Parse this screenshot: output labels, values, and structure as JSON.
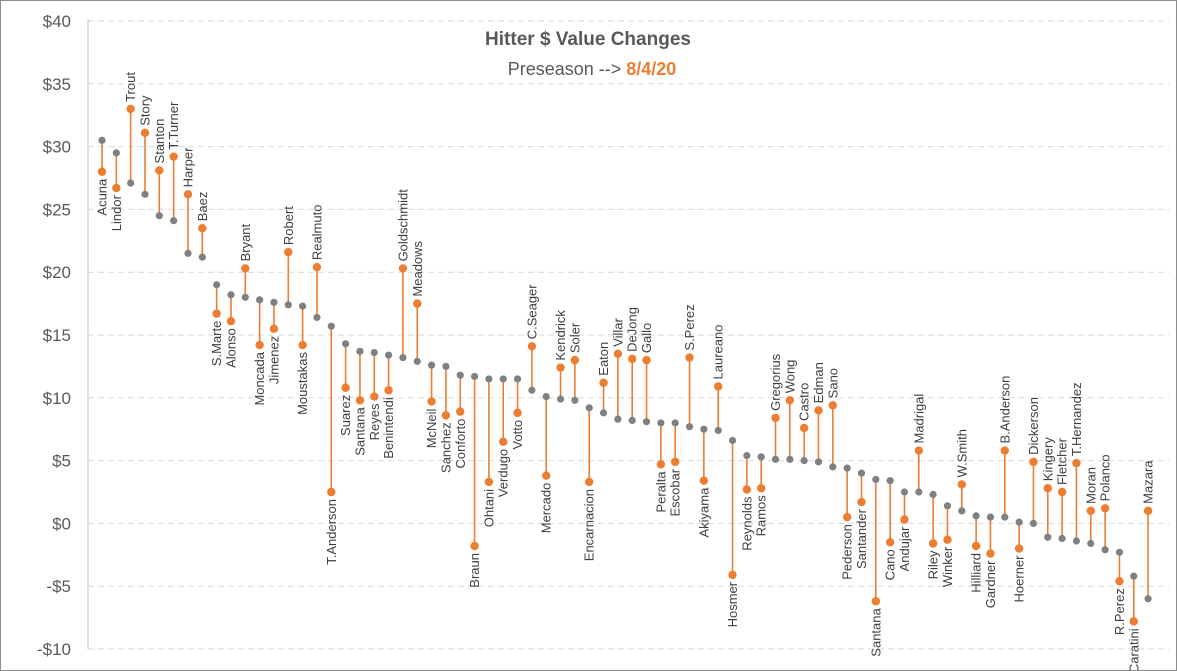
{
  "chart_data": {
    "type": "dumbbell",
    "title": "Hitter $ Value Changes",
    "subtitle_prefix": "Preseason -->",
    "subtitle_date": "8/4/20",
    "ylim": [
      -10,
      40
    ],
    "y_ticks": [
      -10,
      -5,
      0,
      5,
      10,
      15,
      20,
      25,
      30,
      35,
      40
    ],
    "y_tick_labels": [
      "-$10",
      "-$5",
      "$0",
      "$5",
      "$10",
      "$15",
      "$20",
      "$25",
      "$30",
      "$35",
      "$40"
    ],
    "grid": true,
    "colors": {
      "preseason": "#808080",
      "current": "#ed7d31",
      "grid": "#d9d9d9",
      "axis": "#bfbfbf"
    },
    "series": [
      {
        "name": "Preseason",
        "key": "pre"
      },
      {
        "name": "8/4/20",
        "key": "cur"
      }
    ],
    "players": [
      {
        "name": "Acuna",
        "pre": 30.5,
        "cur": 28.0
      },
      {
        "name": "Lindor",
        "pre": 29.5,
        "cur": 26.7
      },
      {
        "name": "Trout",
        "pre": 27.1,
        "cur": 33.0
      },
      {
        "name": "Story",
        "pre": 26.2,
        "cur": 31.1
      },
      {
        "name": "Stanton",
        "pre": 24.5,
        "cur": 28.1
      },
      {
        "name": "T.Turner",
        "pre": 24.1,
        "cur": 29.2
      },
      {
        "name": "Harper",
        "pre": 21.5,
        "cur": 26.2
      },
      {
        "name": "Baez",
        "pre": 21.2,
        "cur": 23.5
      },
      {
        "name": "S.Marte",
        "pre": 19.0,
        "cur": 16.7
      },
      {
        "name": "Alonso",
        "pre": 18.2,
        "cur": 16.1
      },
      {
        "name": "Bryant",
        "pre": 18.0,
        "cur": 20.3
      },
      {
        "name": "Moncada",
        "pre": 17.8,
        "cur": 14.2
      },
      {
        "name": "Jimenez",
        "pre": 17.6,
        "cur": 15.5
      },
      {
        "name": "Robert",
        "pre": 17.4,
        "cur": 21.6
      },
      {
        "name": "Moustakas",
        "pre": 17.3,
        "cur": 14.2
      },
      {
        "name": "Realmuto",
        "pre": 16.4,
        "cur": 20.4
      },
      {
        "name": "T.Anderson",
        "pre": 15.7,
        "cur": 2.5
      },
      {
        "name": "Suarez",
        "pre": 14.3,
        "cur": 10.8
      },
      {
        "name": "Santana",
        "pre": 13.7,
        "cur": 9.8
      },
      {
        "name": "Reyes",
        "pre": 13.6,
        "cur": 10.1
      },
      {
        "name": "Benintendi",
        "pre": 13.4,
        "cur": 10.6
      },
      {
        "name": "Goldschmidt",
        "pre": 13.2,
        "cur": 20.3
      },
      {
        "name": "Meadows",
        "pre": 12.9,
        "cur": 17.5
      },
      {
        "name": "McNeil",
        "pre": 12.6,
        "cur": 9.7
      },
      {
        "name": "Sanchez",
        "pre": 12.5,
        "cur": 8.6
      },
      {
        "name": "Conforto",
        "pre": 11.8,
        "cur": 8.9
      },
      {
        "name": "Braun",
        "pre": 11.7,
        "cur": -1.8
      },
      {
        "name": "Ohtani",
        "pre": 11.5,
        "cur": 3.3
      },
      {
        "name": "Verdugo",
        "pre": 11.5,
        "cur": 6.5
      },
      {
        "name": "Votto",
        "pre": 11.5,
        "cur": 8.8
      },
      {
        "name": "C.Seager",
        "pre": 10.6,
        "cur": 14.1
      },
      {
        "name": "Mercado",
        "pre": 10.1,
        "cur": 3.8
      },
      {
        "name": "Kendrick",
        "pre": 9.9,
        "cur": 12.4
      },
      {
        "name": "Soler",
        "pre": 9.8,
        "cur": 13.0
      },
      {
        "name": "Encarnacion",
        "pre": 9.2,
        "cur": 3.3
      },
      {
        "name": "Eaton",
        "pre": 8.8,
        "cur": 11.2
      },
      {
        "name": "Villar",
        "pre": 8.3,
        "cur": 13.5
      },
      {
        "name": "DeJong",
        "pre": 8.2,
        "cur": 13.1
      },
      {
        "name": "Gallo",
        "pre": 8.1,
        "cur": 13.0
      },
      {
        "name": "Peralta",
        "pre": 8.0,
        "cur": 4.7
      },
      {
        "name": "Escobar",
        "pre": 8.0,
        "cur": 4.9
      },
      {
        "name": "S.Perez",
        "pre": 7.7,
        "cur": 13.2
      },
      {
        "name": "Akiyama",
        "pre": 7.5,
        "cur": 3.4
      },
      {
        "name": "Laureano",
        "pre": 7.4,
        "cur": 10.9
      },
      {
        "name": "Hosmer",
        "pre": 6.6,
        "cur": -4.1
      },
      {
        "name": "Reynolds",
        "pre": 5.4,
        "cur": 2.7
      },
      {
        "name": "Ramos",
        "pre": 5.3,
        "cur": 2.8
      },
      {
        "name": "Gregorius",
        "pre": 5.1,
        "cur": 8.4
      },
      {
        "name": "Wong",
        "pre": 5.1,
        "cur": 9.8
      },
      {
        "name": "Castro",
        "pre": 5.0,
        "cur": 7.6
      },
      {
        "name": "Edman",
        "pre": 4.9,
        "cur": 9.0
      },
      {
        "name": "Sano",
        "pre": 4.5,
        "cur": 9.4
      },
      {
        "name": "Pederson",
        "pre": 4.4,
        "cur": 0.5
      },
      {
        "name": "Santander",
        "pre": 4.0,
        "cur": 1.7
      },
      {
        "name": "Santana",
        "pre": 3.5,
        "cur": -6.2
      },
      {
        "name": "Cano",
        "pre": 3.4,
        "cur": -1.5
      },
      {
        "name": "Andujar",
        "pre": 2.5,
        "cur": 0.3
      },
      {
        "name": "Madrigal",
        "pre": 2.5,
        "cur": 5.8
      },
      {
        "name": "Riley",
        "pre": 2.3,
        "cur": -1.6
      },
      {
        "name": "Winker",
        "pre": 1.4,
        "cur": -1.3
      },
      {
        "name": "W.Smith",
        "pre": 1.0,
        "cur": 3.1
      },
      {
        "name": "Hilliard",
        "pre": 0.6,
        "cur": -1.8
      },
      {
        "name": "Gardner",
        "pre": 0.5,
        "cur": -2.4
      },
      {
        "name": "B.Anderson",
        "pre": 0.5,
        "cur": 5.8
      },
      {
        "name": "Hoerner",
        "pre": 0.1,
        "cur": -2.0
      },
      {
        "name": "Dickerson",
        "pre": 0.0,
        "cur": 4.9
      },
      {
        "name": "Kingery",
        "pre": -1.1,
        "cur": 2.8
      },
      {
        "name": "Fletcher",
        "pre": -1.2,
        "cur": 2.5
      },
      {
        "name": "T.Hernandez",
        "pre": -1.4,
        "cur": 4.8
      },
      {
        "name": "Moran",
        "pre": -1.6,
        "cur": 1.0
      },
      {
        "name": "Polanco",
        "pre": -2.1,
        "cur": 1.2
      },
      {
        "name": "R.Perez",
        "pre": -2.3,
        "cur": -4.6
      },
      {
        "name": "Caratini",
        "pre": -4.2,
        "cur": -7.8
      },
      {
        "name": "Mazara",
        "pre": -6.0,
        "cur": 1.0
      }
    ]
  }
}
